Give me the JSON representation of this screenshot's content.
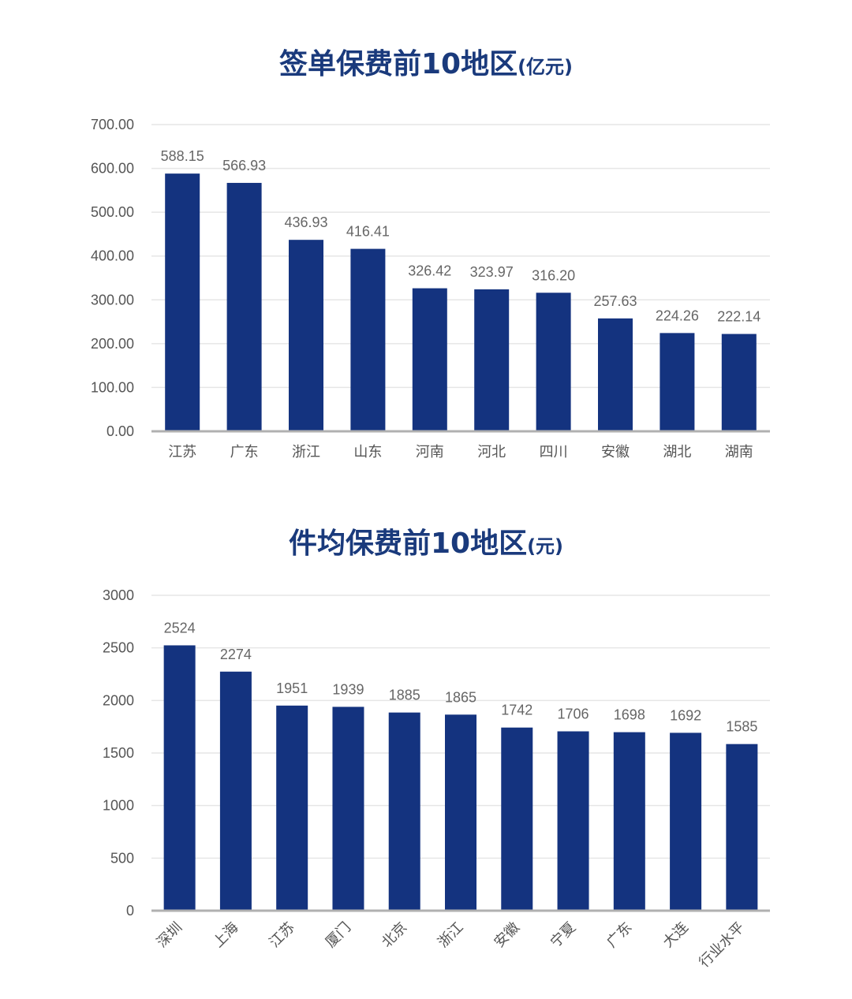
{
  "chart_data": [
    {
      "type": "bar",
      "title": "签单保费前10地区",
      "unit": "(亿元)",
      "categories": [
        "江苏",
        "广东",
        "浙江",
        "山东",
        "河南",
        "河北",
        "四川",
        "安徽",
        "湖北",
        "湖南"
      ],
      "values": [
        588.15,
        566.93,
        436.93,
        416.41,
        326.42,
        323.97,
        316.2,
        257.63,
        224.26,
        222.14
      ],
      "value_labels": [
        "588.15",
        "566.93",
        "436.93",
        "416.41",
        "326.42",
        "323.97",
        "316.20",
        "257.63",
        "224.26",
        "222.14"
      ],
      "ylim": [
        0,
        700
      ],
      "yticks": [
        "0.00",
        "100.00",
        "200.00",
        "300.00",
        "400.00",
        "500.00",
        "600.00",
        "700.00"
      ],
      "grid": true,
      "bar_color": "#14337f"
    },
    {
      "type": "bar",
      "title": "件均保费前10地区",
      "unit": "(元)",
      "categories": [
        "深圳",
        "上海",
        "江苏",
        "厦门",
        "北京",
        "浙江",
        "安徽",
        "宁夏",
        "广东",
        "大连",
        "行业水平"
      ],
      "values": [
        2524,
        2274,
        1951,
        1939,
        1885,
        1865,
        1742,
        1706,
        1698,
        1692,
        1585
      ],
      "value_labels": [
        "2524",
        "2274",
        "1951",
        "1939",
        "1885",
        "1865",
        "1742",
        "1706",
        "1698",
        "1692",
        "1585"
      ],
      "ylim": [
        0,
        3000
      ],
      "yticks": [
        "0",
        "500",
        "1000",
        "1500",
        "2000",
        "2500",
        "3000"
      ],
      "grid": true,
      "bar_color": "#14337f"
    }
  ]
}
